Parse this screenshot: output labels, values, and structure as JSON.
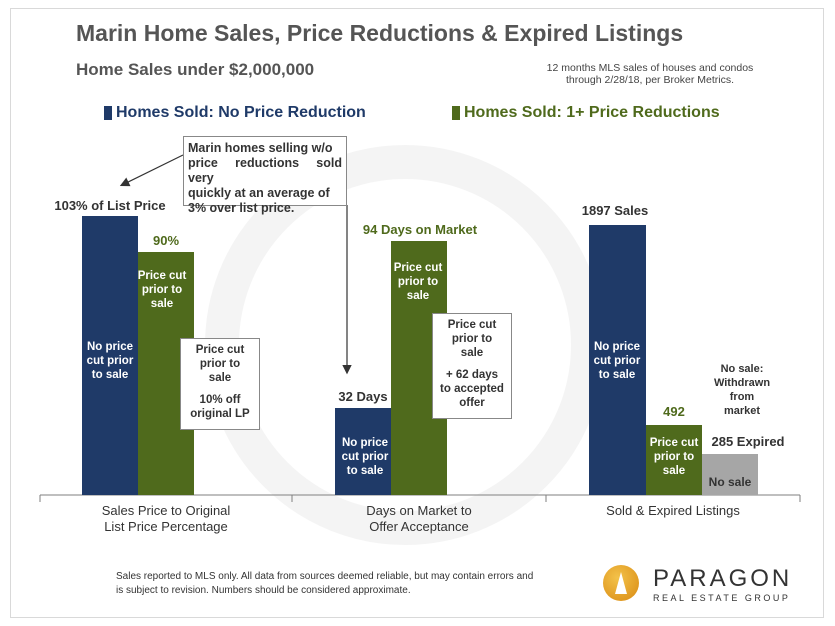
{
  "header": {
    "title": "Marin Home Sales, Price Reductions & Expired Listings",
    "subtitle": "Home Sales under $2,000,000",
    "source_line1": "12 months MLS sales of houses and condos",
    "source_line2": "through 2/28/18, per Broker Metrics."
  },
  "colors": {
    "no_reduction": "#1f3a68",
    "price_reduction": "#4f6a1c",
    "expired": "#a6a6a6",
    "title_text": "#555555",
    "legend_blue": "#1f3a68",
    "legend_green": "#4f6a1c"
  },
  "chart_data": {
    "type": "bar",
    "groups": [
      "Sales Price to Original List Price Percentage",
      "Days on Market to Offer Acceptance",
      "Sold & Expired Listings"
    ],
    "series": [
      {
        "name": "Homes Sold: No Price Reduction",
        "values": [
          "103% of List Price",
          "32 Days",
          "1897 Sales"
        ]
      },
      {
        "name": "Homes Sold: 1+ Price Reductions",
        "values": [
          "90%",
          "94 Days on Market",
          "492"
        ]
      },
      {
        "name": "",
        "values": [
          null,
          null,
          "285 Expired"
        ]
      }
    ],
    "numeric": {
      "sales_price_pct": {
        "no_reduction": 103,
        "price_reduction": 90
      },
      "days_on_market": {
        "no_reduction": 32,
        "price_reduction": 94
      },
      "sold_expired": {
        "no_reduction": 1897,
        "price_reduction": 492,
        "expired": 285
      }
    }
  },
  "legend": {
    "no_reduction": "Homes Sold: No Price Reduction",
    "price_reduction": "Homes Sold: 1+ Price Reductions"
  },
  "groups": [
    {
      "axis_line1": "Sales Price to Original",
      "axis_line2": "List Price Percentage",
      "bar1_value_label": "103% of List Price",
      "bar1_inner": [
        "No price",
        "cut prior",
        "to sale"
      ],
      "bar2_value_label": "90%",
      "bar2_inner": [
        "Price cut",
        "prior to",
        "sale"
      ],
      "note": [
        "Price cut",
        "prior to",
        "sale",
        "",
        "10% off",
        "original LP"
      ]
    },
    {
      "axis_line1": "Days on Market to",
      "axis_line2": "Offer Acceptance",
      "bar1_value_label": "32 Days",
      "bar1_inner": [
        "No price",
        "cut prior",
        "to sale"
      ],
      "bar2_value_label": "94 Days on Market",
      "bar2_inner": [
        "Price cut",
        "prior to",
        "sale"
      ],
      "note": [
        "Price cut",
        "prior to",
        "sale",
        "",
        "+ 62 days",
        "to accepted",
        "offer"
      ]
    },
    {
      "axis_line1": "Sold & Expired Listings",
      "axis_line2": "",
      "bar1_value_label": "1897 Sales",
      "bar1_inner": [
        "No price",
        "cut prior",
        "to sale"
      ],
      "bar2_value_label": "492",
      "bar2_inner": [
        "Price cut",
        "prior to",
        "sale"
      ],
      "bar3_value_label": "285 Expired",
      "bar3_inner": [
        "No sale"
      ],
      "bar3_note": [
        "No sale:",
        "Withdrawn",
        "from",
        "market"
      ]
    }
  ],
  "callout": {
    "text": [
      "Marin homes selling w/o",
      "price reductions sold very",
      "quickly at an average of",
      "3% over list price."
    ]
  },
  "footer": {
    "disclaimer": "Sales reported to MLS only. All data from sources deemed reliable, but may contain errors and is subject to revision. Numbers should be considered approximate.",
    "brand": "PARAGON",
    "brand_sub": "REAL ESTATE GROUP"
  }
}
